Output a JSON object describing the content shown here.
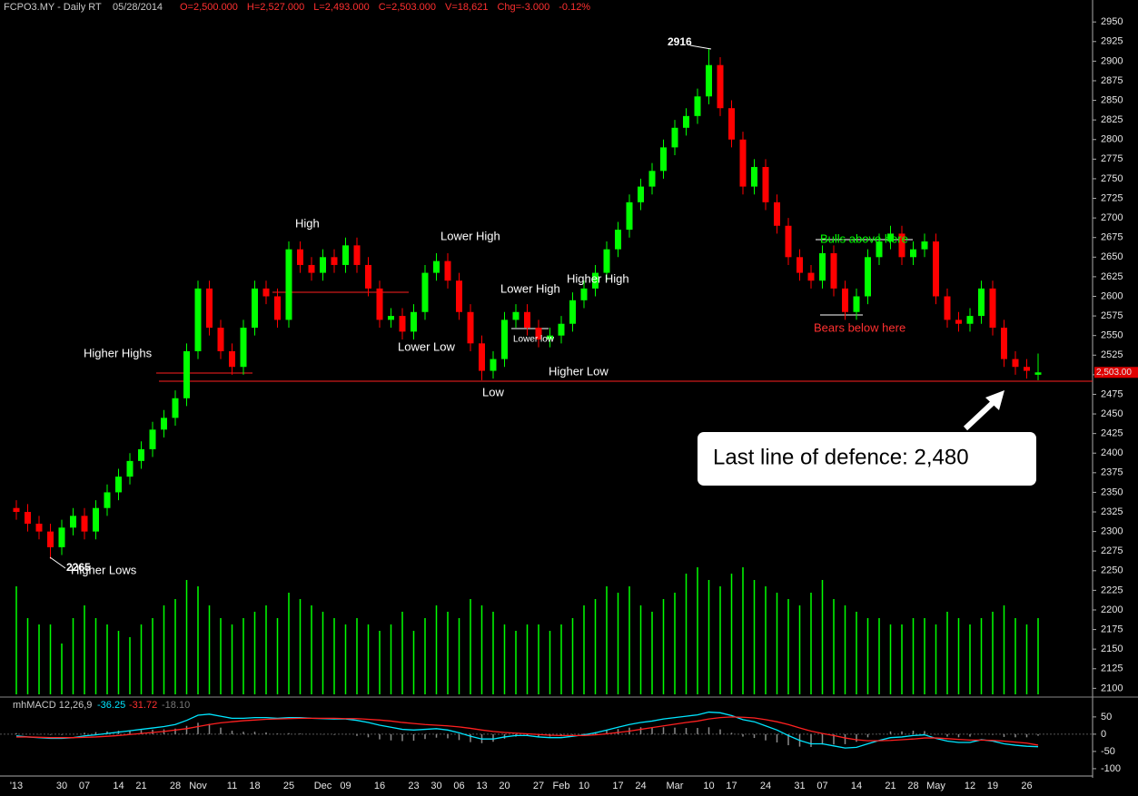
{
  "header": {
    "symbol": "FCPO3.MY - Daily RT",
    "date": "05/28/2014",
    "quote": [
      "O=2,500.000",
      "H=2,527.000",
      "L=2,493.000",
      "C=2,503.000",
      "V=18,621",
      "Chg=-3.000",
      "-0.12%"
    ]
  },
  "chart_data": [
    {
      "type": "candlestick",
      "categories": [
        "'13",
        null,
        null,
        null,
        "30",
        null,
        "07",
        null,
        null,
        "14",
        null,
        "21",
        null,
        null,
        "28",
        null,
        "Nov",
        null,
        null,
        "11",
        null,
        "18",
        null,
        null,
        "25",
        null,
        null,
        "Dec",
        null,
        "09",
        null,
        null,
        "16",
        null,
        null,
        "23",
        null,
        "30",
        null,
        "06",
        null,
        "13",
        null,
        "20",
        null,
        null,
        "27",
        null,
        "Feb",
        null,
        "10",
        null,
        null,
        "17",
        null,
        "24",
        null,
        null,
        "Mar",
        null,
        null,
        "10",
        null,
        "17",
        null,
        null,
        "24",
        null,
        null,
        "31",
        null,
        "07",
        null,
        null,
        "14",
        null,
        null,
        "21",
        null,
        "28",
        null,
        "May",
        null,
        null,
        "12",
        null,
        "19",
        null,
        null,
        "26",
        null
      ],
      "open": [
        2330,
        2325,
        2310,
        2300,
        2280,
        2305,
        2320,
        2300,
        2330,
        2350,
        2370,
        2390,
        2405,
        2430,
        2445,
        2470,
        2530,
        2610,
        2560,
        2530,
        2510,
        2560,
        2610,
        2600,
        2570,
        2660,
        2640,
        2630,
        2650,
        2640,
        2665,
        2640,
        2610,
        2570,
        2575,
        2555,
        2580,
        2630,
        2645,
        2620,
        2580,
        2540,
        2505,
        2520,
        2570,
        2580,
        2560,
        2545,
        2550,
        2565,
        2595,
        2610,
        2630,
        2660,
        2685,
        2720,
        2740,
        2760,
        2790,
        2815,
        2830,
        2855,
        2895,
        2840,
        2800,
        2740,
        2765,
        2720,
        2690,
        2650,
        2630,
        2620,
        2655,
        2610,
        2580,
        2600,
        2650,
        2670,
        2680,
        2650,
        2660,
        2670,
        2600,
        2570,
        2565,
        2575,
        2610,
        2560,
        2520,
        2510,
        2500
      ],
      "high": [
        2340,
        2335,
        2320,
        2310,
        2315,
        2330,
        2330,
        2340,
        2360,
        2380,
        2400,
        2415,
        2440,
        2455,
        2480,
        2540,
        2620,
        2620,
        2570,
        2540,
        2570,
        2620,
        2620,
        2610,
        2670,
        2670,
        2650,
        2660,
        2660,
        2675,
        2675,
        2650,
        2620,
        2585,
        2585,
        2590,
        2640,
        2655,
        2655,
        2630,
        2590,
        2550,
        2530,
        2580,
        2590,
        2590,
        2570,
        2560,
        2575,
        2605,
        2620,
        2640,
        2670,
        2695,
        2730,
        2750,
        2770,
        2800,
        2825,
        2840,
        2865,
        2916,
        2905,
        2850,
        2810,
        2775,
        2775,
        2730,
        2700,
        2660,
        2640,
        2665,
        2665,
        2620,
        2610,
        2660,
        2680,
        2690,
        2690,
        2670,
        2680,
        2680,
        2610,
        2580,
        2585,
        2620,
        2620,
        2570,
        2530,
        2520,
        2527
      ],
      "low": [
        2315,
        2300,
        2290,
        2265,
        2270,
        2295,
        2290,
        2290,
        2320,
        2340,
        2360,
        2380,
        2395,
        2420,
        2435,
        2460,
        2520,
        2550,
        2520,
        2500,
        2500,
        2550,
        2590,
        2560,
        2560,
        2630,
        2620,
        2620,
        2630,
        2630,
        2630,
        2600,
        2560,
        2560,
        2545,
        2545,
        2570,
        2620,
        2610,
        2570,
        2530,
        2493,
        2495,
        2510,
        2560,
        2550,
        2535,
        2535,
        2540,
        2555,
        2585,
        2600,
        2620,
        2650,
        2675,
        2710,
        2730,
        2750,
        2780,
        2805,
        2820,
        2845,
        2830,
        2790,
        2730,
        2730,
        2710,
        2680,
        2640,
        2620,
        2610,
        2610,
        2600,
        2570,
        2570,
        2590,
        2640,
        2660,
        2640,
        2640,
        2650,
        2590,
        2560,
        2555,
        2555,
        2565,
        2550,
        2510,
        2500,
        2495,
        2493
      ],
      "close": [
        2325,
        2310,
        2300,
        2280,
        2305,
        2320,
        2300,
        2330,
        2350,
        2370,
        2390,
        2405,
        2430,
        2445,
        2470,
        2530,
        2610,
        2560,
        2530,
        2510,
        2560,
        2610,
        2600,
        2570,
        2660,
        2640,
        2630,
        2650,
        2640,
        2665,
        2640,
        2610,
        2570,
        2575,
        2555,
        2580,
        2630,
        2645,
        2620,
        2580,
        2540,
        2505,
        2520,
        2570,
        2580,
        2560,
        2545,
        2550,
        2565,
        2595,
        2610,
        2630,
        2660,
        2685,
        2720,
        2740,
        2760,
        2790,
        2815,
        2830,
        2855,
        2895,
        2840,
        2800,
        2740,
        2765,
        2720,
        2690,
        2650,
        2630,
        2620,
        2655,
        2610,
        2580,
        2600,
        2650,
        2670,
        2680,
        2650,
        2660,
        2670,
        2600,
        2570,
        2565,
        2575,
        2610,
        2560,
        2520,
        2510,
        2505,
        2503
      ],
      "volume": [
        85,
        60,
        55,
        55,
        40,
        60,
        70,
        60,
        55,
        50,
        45,
        55,
        60,
        70,
        75,
        90,
        85,
        70,
        60,
        55,
        60,
        65,
        70,
        60,
        80,
        75,
        70,
        65,
        60,
        55,
        60,
        55,
        50,
        55,
        65,
        50,
        60,
        70,
        65,
        60,
        75,
        70,
        65,
        55,
        50,
        55,
        55,
        50,
        55,
        60,
        70,
        75,
        85,
        80,
        85,
        70,
        65,
        75,
        80,
        95,
        100,
        90,
        85,
        95,
        100,
        90,
        85,
        80,
        75,
        70,
        80,
        90,
        75,
        70,
        65,
        60,
        60,
        55,
        55,
        60,
        60,
        55,
        65,
        60,
        55,
        60,
        65,
        70,
        60,
        55,
        60
      ],
      "up_color": "#00ff00",
      "down_color": "#ff0000",
      "volume_color": "#00ff00",
      "ylim": [
        2090,
        2978
      ],
      "yticks": [
        2100,
        2125,
        2150,
        2175,
        2200,
        2225,
        2250,
        2275,
        2300,
        2325,
        2350,
        2375,
        2400,
        2425,
        2450,
        2475,
        2500,
        2525,
        2550,
        2575,
        2600,
        2625,
        2650,
        2675,
        2700,
        2725,
        2750,
        2775,
        2800,
        2825,
        2850,
        2875,
        2900,
        2925,
        2950
      ],
      "last_price": {
        "value": 2503,
        "label": "2,503.00"
      },
      "annotations": [
        "Higher Highs",
        "High",
        "Lower High",
        "Lower High",
        "Higher High",
        "Lower Low",
        "Lower low",
        "Low",
        "Higher Low",
        "Higher Lows",
        "Bulls above here",
        "Bears below here",
        "Last line of defence: 2,480"
      ]
    },
    {
      "type": "line",
      "title": "mhMACD 12,26,9",
      "series": [
        {
          "color": "#00e5ff",
          "values": [
            -5,
            -8,
            -10,
            -12,
            -12,
            -10,
            -5,
            -2,
            2,
            6,
            10,
            14,
            18,
            22,
            28,
            40,
            55,
            58,
            52,
            46,
            46,
            48,
            48,
            46,
            48,
            48,
            46,
            45,
            44,
            44,
            40,
            34,
            26,
            20,
            14,
            12,
            14,
            16,
            12,
            4,
            -6,
            -14,
            -14,
            -8,
            -4,
            -4,
            -8,
            -10,
            -10,
            -6,
            -2,
            4,
            12,
            20,
            28,
            34,
            38,
            44,
            48,
            52,
            56,
            64,
            62,
            54,
            42,
            36,
            24,
            12,
            -4,
            -18,
            -28,
            -28,
            -34,
            -40,
            -38,
            -28,
            -18,
            -10,
            -8,
            -4,
            -2,
            -12,
            -20,
            -24,
            -24,
            -16,
            -20,
            -28,
            -32,
            -35,
            -36.25
          ]
        },
        {
          "color": "#ff2020",
          "values": [
            -8,
            -8,
            -9,
            -10,
            -10,
            -10,
            -9,
            -8,
            -6,
            -4,
            -1,
            2,
            5,
            8,
            12,
            16,
            22,
            28,
            33,
            36,
            39,
            41,
            43,
            44,
            45,
            46,
            46,
            46,
            46,
            45,
            45,
            43,
            41,
            38,
            34,
            31,
            28,
            26,
            24,
            21,
            17,
            12,
            8,
            5,
            3,
            1,
            -1,
            -3,
            -4,
            -4,
            -4,
            -2,
            1,
            5,
            9,
            14,
            19,
            24,
            29,
            34,
            38,
            44,
            48,
            50,
            49,
            47,
            42,
            36,
            28,
            18,
            9,
            2,
            -4,
            -11,
            -16,
            -19,
            -19,
            -18,
            -16,
            -14,
            -11,
            -11,
            -13,
            -15,
            -17,
            -17,
            -18,
            -20,
            -23,
            -26,
            -31.72
          ]
        }
      ],
      "histogram_label": "-18.10",
      "histogram_color": "#8a8a8a",
      "ylim": [
        -116,
        97
      ],
      "yticks": [
        50,
        0,
        -50,
        -100
      ]
    }
  ]
}
